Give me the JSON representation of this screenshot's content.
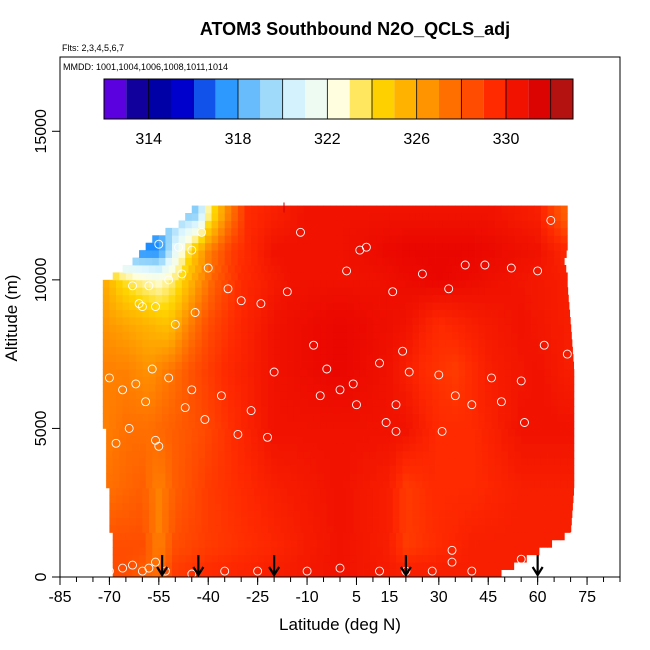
{
  "chart_data": {
    "type": "heatmap",
    "title": "ATOM3 Southbound N2O_QCLS_adj",
    "flights_note": "Flts: 2,3,4,5,6,7",
    "dates_note": "MMDD: 1001,1004,1006,1008,1011,1014",
    "xlabel": "Latitude (deg N)",
    "ylabel": "Altitude (m)",
    "xlim": [
      -85,
      85
    ],
    "ylim": [
      0,
      17500
    ],
    "x_ticks": [
      -85,
      -70,
      -55,
      -40,
      -25,
      -10,
      5,
      15,
      30,
      45,
      60,
      75
    ],
    "x_tick_labels": [
      "-85",
      "-70",
      "-55",
      "-40",
      "-25",
      "-10",
      "5",
      "15",
      "30",
      "45",
      "60",
      "75"
    ],
    "y_ticks": [
      0,
      5000,
      10000,
      15000
    ],
    "y_tick_labels": [
      "0",
      "5000",
      "10000",
      "15000"
    ],
    "colorbar": {
      "range": [
        312,
        333
      ],
      "ticks": [
        314,
        318,
        322,
        326,
        330
      ],
      "tick_labels": [
        "314",
        "318",
        "322",
        "326",
        "330"
      ],
      "colors": [
        "#7f00ff",
        "#00008b",
        "#0000cd",
        "#1e90ff",
        "#87cefa",
        "#e0f8ff",
        "#ffffe0",
        "#ffd700",
        "#ffa500",
        "#ff6600",
        "#ff2a00",
        "#e60000",
        "#a01818"
      ]
    },
    "field_rows": [
      {
        "alt": 12200,
        "bins": [
          [
            -43,
            319
          ],
          [
            -40,
            323
          ],
          [
            -35,
            326.5
          ],
          [
            -28,
            329.5
          ],
          [
            -10,
            330.5
          ],
          [
            10,
            330.5
          ],
          [
            30,
            330.5
          ],
          [
            45,
            330.5
          ],
          [
            60,
            330
          ],
          [
            68,
            328
          ]
        ]
      },
      {
        "alt": 11000,
        "bins": [
          [
            -55,
            317
          ],
          [
            -50,
            321
          ],
          [
            -45,
            324.5
          ],
          [
            -40,
            327
          ],
          [
            -33,
            329
          ],
          [
            -20,
            330.5
          ],
          [
            0,
            330.5
          ],
          [
            20,
            331
          ],
          [
            40,
            331
          ],
          [
            60,
            330.5
          ],
          [
            70,
            329.5
          ]
        ]
      },
      {
        "alt": 10000,
        "bins": [
          [
            -72,
            326
          ],
          [
            -66,
            324
          ],
          [
            -60,
            323
          ],
          [
            -55,
            322.5
          ],
          [
            -50,
            323.5
          ],
          [
            -44,
            326
          ],
          [
            -38,
            328
          ],
          [
            -30,
            329.5
          ],
          [
            -15,
            330.5
          ],
          [
            10,
            330.5
          ],
          [
            30,
            331
          ],
          [
            50,
            330.5
          ],
          [
            70,
            330
          ]
        ]
      },
      {
        "alt": 8500,
        "bins": [
          [
            -72,
            326.5
          ],
          [
            -65,
            326
          ],
          [
            -58,
            325.5
          ],
          [
            -52,
            325
          ],
          [
            -46,
            327
          ],
          [
            -40,
            328.5
          ],
          [
            -32,
            329.5
          ],
          [
            -20,
            330.5
          ],
          [
            0,
            331
          ],
          [
            20,
            330.5
          ],
          [
            30,
            329.5
          ],
          [
            40,
            330
          ],
          [
            55,
            330.5
          ],
          [
            70,
            330
          ]
        ]
      },
      {
        "alt": 7000,
        "bins": [
          [
            -72,
            327
          ],
          [
            -65,
            327
          ],
          [
            -58,
            326.5
          ],
          [
            -50,
            327.5
          ],
          [
            -44,
            328.5
          ],
          [
            -35,
            329.5
          ],
          [
            -20,
            330.5
          ],
          [
            0,
            331
          ],
          [
            15,
            330.5
          ],
          [
            25,
            329.5
          ],
          [
            35,
            329
          ],
          [
            45,
            330
          ],
          [
            60,
            330.5
          ],
          [
            70,
            330
          ]
        ]
      },
      {
        "alt": 5000,
        "bins": [
          [
            -72,
            327
          ],
          [
            -65,
            327.5
          ],
          [
            -58,
            327.5
          ],
          [
            -50,
            328
          ],
          [
            -42,
            328.5
          ],
          [
            -32,
            329.5
          ],
          [
            -20,
            330.5
          ],
          [
            0,
            330.5
          ],
          [
            20,
            330.5
          ],
          [
            30,
            329.5
          ],
          [
            40,
            329.5
          ],
          [
            55,
            330.5
          ],
          [
            70,
            330.5
          ]
        ]
      },
      {
        "alt": 3000,
        "bins": [
          [
            -70,
            327.5
          ],
          [
            -60,
            328
          ],
          [
            -55,
            327
          ],
          [
            -50,
            328
          ],
          [
            -40,
            329
          ],
          [
            -30,
            329.5
          ],
          [
            -20,
            330
          ],
          [
            0,
            330.5
          ],
          [
            15,
            330
          ],
          [
            20,
            329
          ],
          [
            28,
            329.5
          ],
          [
            40,
            329.5
          ],
          [
            55,
            330
          ],
          [
            70,
            330
          ]
        ]
      },
      {
        "alt": 1000,
        "bins": [
          [
            -68,
            328.5
          ],
          [
            -60,
            328.5
          ],
          [
            -55,
            327
          ],
          [
            -50,
            328.5
          ],
          [
            -40,
            329
          ],
          [
            -25,
            329.5
          ],
          [
            0,
            330.5
          ],
          [
            15,
            330
          ],
          [
            20,
            329
          ],
          [
            30,
            329.5
          ],
          [
            40,
            330
          ],
          [
            55,
            330
          ],
          [
            70,
            330
          ]
        ]
      },
      {
        "alt": 200,
        "bins": [
          [
            -65,
            328.5
          ],
          [
            -55,
            327.5
          ],
          [
            -50,
            329
          ],
          [
            -40,
            329.5
          ],
          [
            -20,
            330
          ],
          [
            0,
            330.5
          ],
          [
            20,
            330
          ],
          [
            40,
            330
          ],
          [
            55,
            330
          ],
          [
            65,
            329.5
          ]
        ]
      }
    ],
    "profile_envelope": {
      "alt": [
        0,
        1500,
        3000,
        5000,
        7000,
        8500,
        9800,
        10200,
        10600,
        11000,
        11400,
        11800,
        12500
      ],
      "lat_min": [
        -68,
        -69,
        -70,
        -71,
        -72,
        -72,
        -72,
        -68,
        -63,
        -60,
        -56,
        -49,
        -43
      ],
      "lat_max": [
        47,
        70,
        71,
        71,
        71,
        70,
        69,
        69,
        68,
        69,
        69,
        69,
        69
      ]
    },
    "sample_points": [
      [
        -70,
        6700
      ],
      [
        -66,
        6300
      ],
      [
        -64,
        5000
      ],
      [
        -62,
        6500
      ],
      [
        -59,
        5900
      ],
      [
        -57,
        7000
      ],
      [
        -56,
        4600
      ],
      [
        -52,
        6700
      ],
      [
        -55,
        4400
      ],
      [
        -68,
        4500
      ],
      [
        -63,
        9800
      ],
      [
        -61,
        9200
      ],
      [
        -56,
        9100
      ],
      [
        -50,
        8500
      ],
      [
        -48,
        10200
      ],
      [
        -44,
        8900
      ],
      [
        -40,
        10400
      ],
      [
        -34,
        9700
      ],
      [
        -30,
        9300
      ],
      [
        -45,
        11000
      ],
      [
        -49,
        11100
      ],
      [
        -42,
        11600
      ],
      [
        -55,
        11200
      ],
      [
        -47,
        5700
      ],
      [
        -45,
        6300
      ],
      [
        -41,
        5300
      ],
      [
        -36,
        6100
      ],
      [
        -31,
        4800
      ],
      [
        -27,
        5600
      ],
      [
        -22,
        4700
      ],
      [
        -24,
        9200
      ],
      [
        -20,
        6900
      ],
      [
        -16,
        9600
      ],
      [
        -12,
        11600
      ],
      [
        -8,
        7800
      ],
      [
        -6,
        6100
      ],
      [
        -4,
        7000
      ],
      [
        0,
        6300
      ],
      [
        2,
        10300
      ],
      [
        4,
        6500
      ],
      [
        5,
        5800
      ],
      [
        6,
        11000
      ],
      [
        8,
        11100
      ],
      [
        12,
        7200
      ],
      [
        14,
        5200
      ],
      [
        16,
        9600
      ],
      [
        17,
        5800
      ],
      [
        17,
        4900
      ],
      [
        19,
        7600
      ],
      [
        21,
        6900
      ],
      [
        25,
        10200
      ],
      [
        30,
        6800
      ],
      [
        31,
        4900
      ],
      [
        33,
        9700
      ],
      [
        35,
        6100
      ],
      [
        38,
        10500
      ],
      [
        40,
        5800
      ],
      [
        44,
        10500
      ],
      [
        46,
        6700
      ],
      [
        49,
        5900
      ],
      [
        52,
        10400
      ],
      [
        55,
        6600
      ],
      [
        56,
        5200
      ],
      [
        60,
        10300
      ],
      [
        62,
        7800
      ],
      [
        64,
        12000
      ],
      [
        69,
        7500
      ],
      [
        71,
        1400
      ],
      [
        -70,
        200
      ],
      [
        -66,
        300
      ],
      [
        -63,
        400
      ],
      [
        -60,
        200
      ],
      [
        -58,
        300
      ],
      [
        -56,
        500
      ],
      [
        -53,
        200
      ],
      [
        -45,
        100
      ],
      [
        -35,
        200
      ],
      [
        -25,
        200
      ],
      [
        -10,
        200
      ],
      [
        0,
        300
      ],
      [
        12,
        200
      ],
      [
        20,
        200
      ],
      [
        28,
        200
      ],
      [
        34,
        900
      ],
      [
        34,
        500
      ],
      [
        40,
        200
      ],
      [
        55,
        600
      ],
      [
        -55,
        12300
      ],
      [
        -52,
        10000
      ],
      [
        -58,
        9800
      ],
      [
        -60,
        9100
      ]
    ],
    "flight_markers_lat": [
      -54,
      -43,
      -20,
      20,
      60
    ],
    "center_marker": {
      "lat": -17,
      "alt": 12400
    }
  }
}
